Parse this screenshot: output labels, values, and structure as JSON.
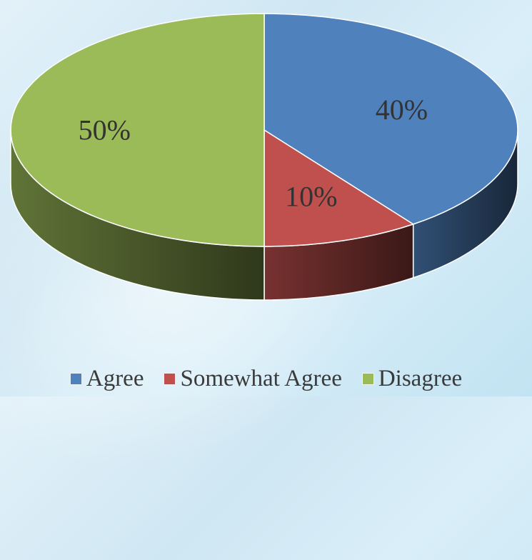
{
  "chart_data": {
    "type": "pie",
    "categories": [
      "Agree",
      "Somewhat Agree",
      "Disagree"
    ],
    "values": [
      40,
      10,
      50
    ],
    "data_labels": [
      "40%",
      "10%",
      "50%"
    ],
    "colors": [
      "#4f81bd",
      "#c0504d",
      "#9bbb59"
    ],
    "title": "",
    "legend_position": "bottom",
    "style": "3d-pie"
  }
}
